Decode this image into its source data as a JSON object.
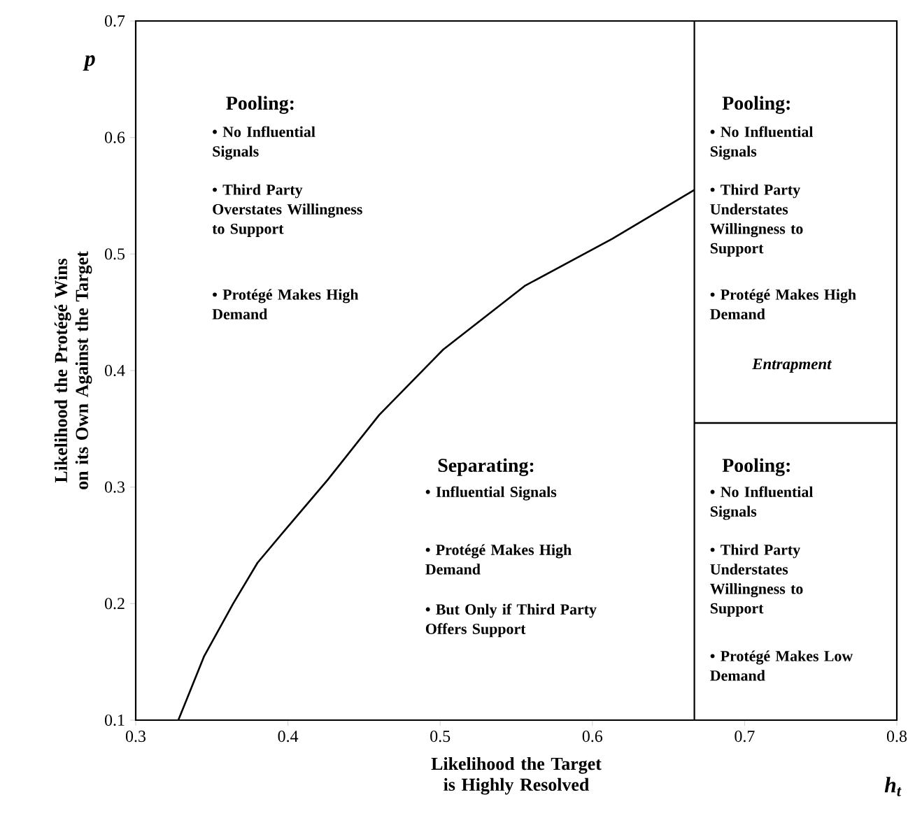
{
  "chart_data": {
    "type": "line",
    "xlabel": "Likelihood the Target is Highly Resolved",
    "ylabel": "Likelihood the Protégé Wins on its Own Against the Target",
    "xlim": [
      0.3,
      0.8
    ],
    "xticks": [
      0.3,
      0.4,
      0.5,
      0.6,
      0.7,
      0.8
    ],
    "ylim": [
      0.1,
      0.7
    ],
    "yticks": [
      0.1,
      0.2,
      0.3,
      0.4,
      0.5,
      0.6,
      0.7
    ],
    "grid": false,
    "series": [
      {
        "color": "#000000",
        "x": [
          0.328,
          0.345,
          0.364,
          0.38,
          0.398,
          0.426,
          0.46,
          0.502,
          0.556,
          0.613,
          0.667
        ],
        "values": [
          0.1,
          0.155,
          0.2,
          0.235,
          0.263,
          0.306,
          0.362,
          0.418,
          0.473,
          0.513,
          0.555
        ]
      },
      {
        "color": "#000000",
        "x": [
          0.667,
          0.8
        ],
        "values": [
          0.355,
          0.355
        ]
      }
    ],
    "ref_lines": [
      {
        "axis": "x",
        "value": 0.667,
        "color": "#000000"
      }
    ],
    "annotations": [
      "p",
      "h$_{t}$",
      "Pooling:",
      "• No Influential Signals",
      "• Third Party Overstates Willingness to Support",
      "• Protégé Makes High Demand",
      "Pooling:",
      "• No Influential Signals",
      "• Third Party Understates Willingness to Support",
      "• Protégé Makes High Demand",
      "Entrapment",
      "Separating:",
      "• Influential Signals",
      "• Protégé Makes High Demand",
      "• But Only if Third Party Offers Support",
      "Pooling:",
      "• No Influential Signals",
      "• Third Party Understates Willingness to Support",
      "• Protégé Makes Low Demand"
    ]
  }
}
